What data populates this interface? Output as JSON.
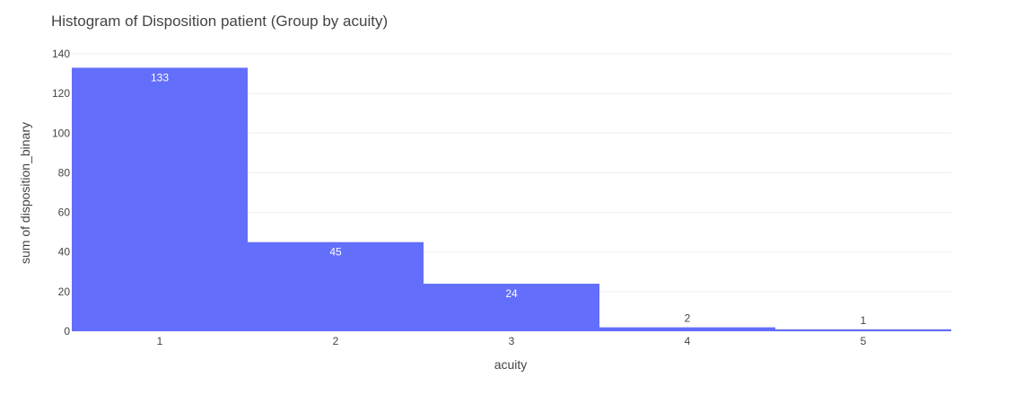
{
  "chart_data": {
    "type": "bar",
    "title": "Histogram of Disposition patient (Group by acuity)",
    "xlabel": "acuity",
    "ylabel": "sum of disposition_binary",
    "categories": [
      "1",
      "2",
      "3",
      "4",
      "5"
    ],
    "values": [
      133,
      45,
      24,
      2,
      1
    ],
    "data_labels": [
      "133",
      "45",
      "24",
      "2",
      "1"
    ],
    "yticks": [
      0,
      20,
      40,
      60,
      80,
      100,
      120,
      140
    ],
    "ylim": [
      0,
      140
    ],
    "grid": true,
    "bar_color": "#636efa"
  }
}
